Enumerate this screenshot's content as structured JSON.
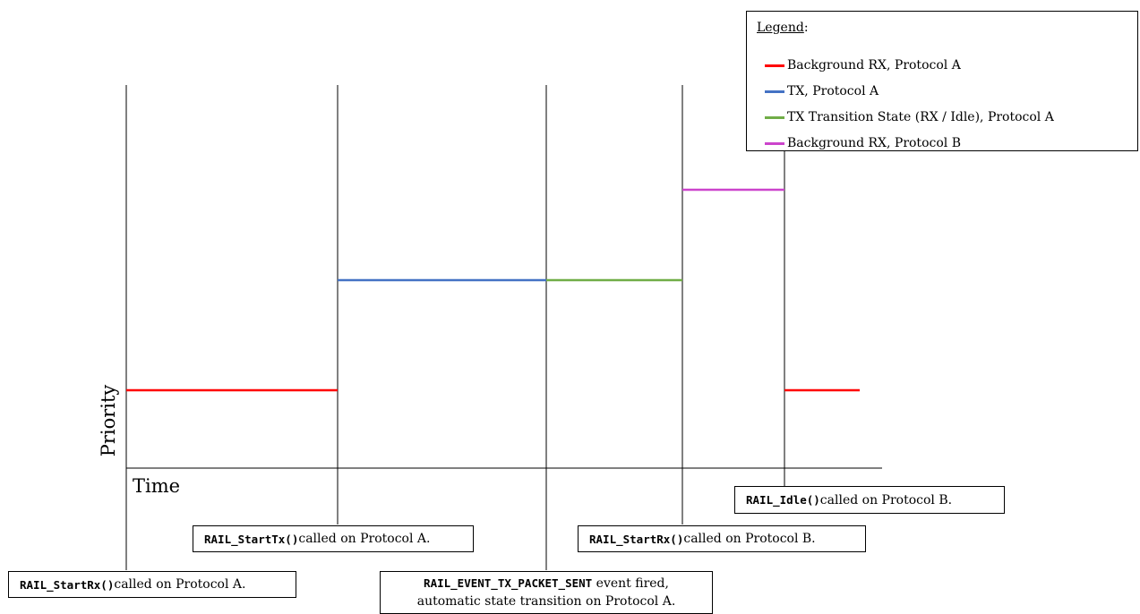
{
  "legend": {
    "title": "Legend",
    "title_suffix": ":",
    "items": [
      {
        "label": "Background RX, Protocol A",
        "color": "#ff0000"
      },
      {
        "label": "TX, Protocol A",
        "color": "#4472c4"
      },
      {
        "label": "TX Transition State (RX / Idle), Protocol A",
        "color": "#70ad47"
      },
      {
        "label": "Background RX, Protocol B",
        "color": "#cc44cc"
      }
    ]
  },
  "axes": {
    "x_label": "Time",
    "y_label": "Priority"
  },
  "events": [
    {
      "code": "RAIL_StartRx()",
      "text": " called on Protocol A."
    },
    {
      "code": "RAIL_StartTx()",
      "text": " called on Protocol A."
    },
    {
      "code": "RAIL_EVENT_TX_PACKET_SENT",
      "text": " event fired,",
      "line2": "automatic state transition on Protocol A."
    },
    {
      "code": "RAIL_StartRx()",
      "text": " called on Protocol B."
    },
    {
      "code": "RAIL_Idle()",
      "text": " called on Protocol B."
    }
  ]
}
